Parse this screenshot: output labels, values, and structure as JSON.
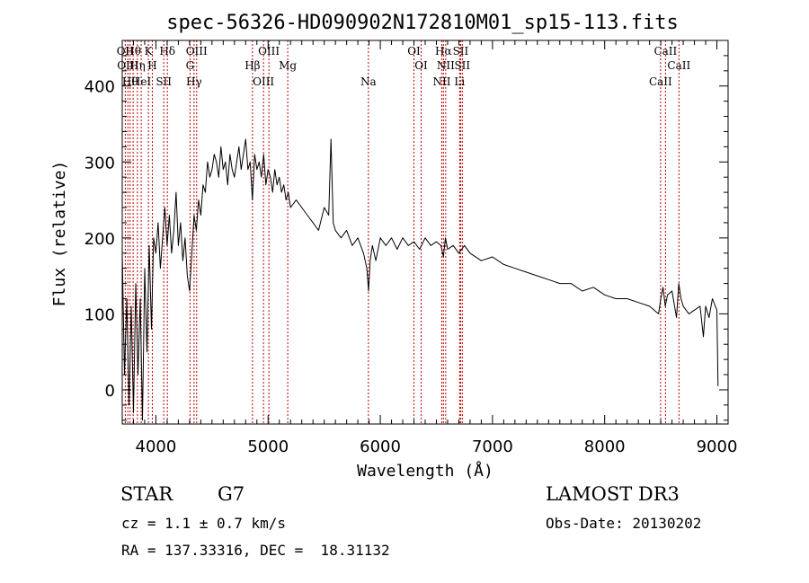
{
  "chart_data": {
    "type": "line",
    "title": "spec-56326-HD090902N172810M01_sp15-113.fits",
    "xlabel": "Wavelength (Å)",
    "ylabel": "Flux (relative)",
    "xlim": [
      3700,
      9100
    ],
    "ylim": [
      -45,
      460
    ],
    "xticks": [
      4000,
      5000,
      6000,
      7000,
      8000,
      9000
    ],
    "yticks": [
      0,
      100,
      200,
      300,
      400
    ],
    "grid": false,
    "series": [
      {
        "name": "flux",
        "color": "#000000",
        "x": [
          3700,
          3720,
          3740,
          3760,
          3780,
          3800,
          3820,
          3840,
          3860,
          3880,
          3900,
          3920,
          3940,
          3960,
          3980,
          4000,
          4020,
          4040,
          4060,
          4080,
          4100,
          4120,
          4140,
          4160,
          4180,
          4200,
          4220,
          4240,
          4260,
          4280,
          4300,
          4320,
          4340,
          4360,
          4380,
          4400,
          4420,
          4440,
          4460,
          4480,
          4500,
          4520,
          4540,
          4560,
          4580,
          4600,
          4620,
          4640,
          4660,
          4680,
          4700,
          4720,
          4740,
          4760,
          4780,
          4800,
          4820,
          4840,
          4860,
          4880,
          4900,
          4920,
          4940,
          4960,
          4980,
          5000,
          5020,
          5040,
          5060,
          5080,
          5100,
          5120,
          5140,
          5160,
          5180,
          5200,
          5250,
          5300,
          5350,
          5400,
          5450,
          5500,
          5540,
          5560,
          5580,
          5600,
          5650,
          5700,
          5750,
          5800,
          5850,
          5880,
          5895,
          5910,
          5930,
          5960,
          6000,
          6050,
          6100,
          6150,
          6200,
          6250,
          6300,
          6350,
          6400,
          6450,
          6500,
          6540,
          6563,
          6580,
          6600,
          6650,
          6700,
          6750,
          6800,
          6900,
          7000,
          7100,
          7200,
          7300,
          7400,
          7500,
          7600,
          7700,
          7800,
          7900,
          8000,
          8100,
          8200,
          8300,
          8400,
          8480,
          8500,
          8520,
          8540,
          8560,
          8600,
          8640,
          8660,
          8680,
          8700,
          8750,
          8800,
          8850,
          8880,
          8900,
          8930,
          8960,
          9000,
          9010
        ],
        "y": [
          180,
          20,
          120,
          -20,
          110,
          -30,
          140,
          20,
          120,
          -40,
          160,
          50,
          190,
          80,
          200,
          180,
          220,
          160,
          200,
          240,
          190,
          230,
          180,
          210,
          260,
          190,
          220,
          170,
          200,
          150,
          130,
          180,
          230,
          210,
          250,
          230,
          270,
          260,
          300,
          280,
          290,
          310,
          300,
          280,
          320,
          290,
          300,
          270,
          310,
          290,
          280,
          300,
          320,
          290,
          310,
          330,
          290,
          300,
          250,
          310,
          290,
          300,
          280,
          310,
          270,
          290,
          280,
          260,
          290,
          270,
          280,
          260,
          270,
          250,
          260,
          240,
          250,
          240,
          230,
          220,
          210,
          240,
          230,
          330,
          220,
          210,
          200,
          210,
          190,
          200,
          180,
          160,
          130,
          170,
          190,
          170,
          200,
          190,
          200,
          185,
          200,
          190,
          195,
          185,
          200,
          190,
          195,
          190,
          175,
          200,
          185,
          190,
          180,
          190,
          180,
          170,
          175,
          165,
          160,
          155,
          150,
          145,
          140,
          140,
          130,
          135,
          125,
          120,
          120,
          115,
          110,
          100,
          120,
          135,
          110,
          125,
          130,
          95,
          140,
          120,
          110,
          100,
          105,
          110,
          70,
          110,
          95,
          120,
          105,
          5
        ]
      }
    ],
    "line_markers": [
      {
        "wavelength": 3727,
        "label": "OII"
      },
      {
        "wavelength": 3750,
        "label": "OIII"
      },
      {
        "wavelength": 3770,
        "label": "Hθ"
      },
      {
        "wavelength": 3797,
        "label": "Hθ"
      },
      {
        "wavelength": 3835,
        "label": "Hη"
      },
      {
        "wavelength": 3869,
        "label": "HeI"
      },
      {
        "wavelength": 3933,
        "label": "K"
      },
      {
        "wavelength": 3968,
        "label": "H"
      },
      {
        "wavelength": 4070,
        "label": "SII"
      },
      {
        "wavelength": 4102,
        "label": "Hδ"
      },
      {
        "wavelength": 4304,
        "label": "G"
      },
      {
        "wavelength": 4340,
        "label": "Hγ"
      },
      {
        "wavelength": 4363,
        "label": "OIII"
      },
      {
        "wavelength": 4861,
        "label": "Hβ"
      },
      {
        "wavelength": 4959,
        "label": "OIII"
      },
      {
        "wavelength": 5007,
        "label": "OIII"
      },
      {
        "wavelength": 5175,
        "label": "Mg"
      },
      {
        "wavelength": 5894,
        "label": "Na"
      },
      {
        "wavelength": 6300,
        "label": "OI"
      },
      {
        "wavelength": 6364,
        "label": "OI"
      },
      {
        "wavelength": 6548,
        "label": "NII"
      },
      {
        "wavelength": 6563,
        "label": "Hα"
      },
      {
        "wavelength": 6583,
        "label": "NII"
      },
      {
        "wavelength": 6707,
        "label": "Li"
      },
      {
        "wavelength": 6716,
        "label": "SII"
      },
      {
        "wavelength": 6731,
        "label": "SII"
      },
      {
        "wavelength": 8498,
        "label": "CaII"
      },
      {
        "wavelength": 8542,
        "label": "CaII"
      },
      {
        "wavelength": 8662,
        "label": "CaII"
      }
    ],
    "marker_color": "#c00000"
  },
  "info": {
    "class_label": "STAR",
    "subclass_label": "G7",
    "survey": "LAMOST DR3",
    "cz": "cz = 1.1 ± 0.7 km/s",
    "obs_date": "Obs-Date: 20130202",
    "coords": "RA = 137.33316, DEC =  18.31132"
  }
}
